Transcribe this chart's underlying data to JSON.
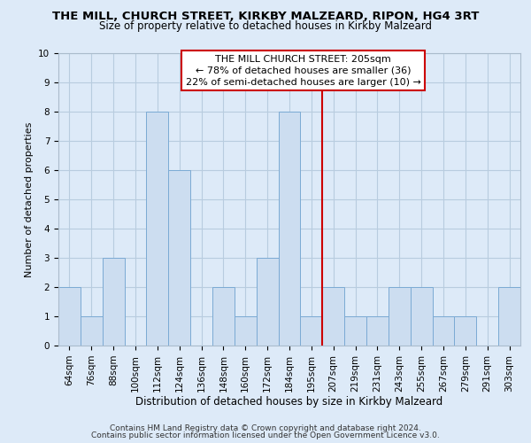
{
  "title": "THE MILL, CHURCH STREET, KIRKBY MALZEARD, RIPON, HG4 3RT",
  "subtitle": "Size of property relative to detached houses in Kirkby Malzeard",
  "xlabel": "Distribution of detached houses by size in Kirkby Malzeard",
  "ylabel": "Number of detached properties",
  "bin_labels": [
    "64sqm",
    "76sqm",
    "88sqm",
    "100sqm",
    "112sqm",
    "124sqm",
    "136sqm",
    "148sqm",
    "160sqm",
    "172sqm",
    "184sqm",
    "195sqm",
    "207sqm",
    "219sqm",
    "231sqm",
    "243sqm",
    "255sqm",
    "267sqm",
    "279sqm",
    "291sqm",
    "303sqm"
  ],
  "bar_heights": [
    2,
    1,
    3,
    0,
    8,
    6,
    0,
    2,
    1,
    3,
    8,
    1,
    2,
    1,
    1,
    2,
    2,
    1,
    1,
    0,
    2
  ],
  "bar_color": "#ccddf0",
  "bar_edge_color": "#7baad4",
  "grid_color": "#b8ccdf",
  "background_color": "#ddeaf8",
  "vline_color": "#cc0000",
  "annotation_title": "THE MILL CHURCH STREET: 205sqm",
  "annotation_line1": "← 78% of detached houses are smaller (36)",
  "annotation_line2": "22% of semi-detached houses are larger (10) →",
  "annotation_box_facecolor": "#ffffff",
  "annotation_box_edgecolor": "#cc0000",
  "footer1": "Contains HM Land Registry data © Crown copyright and database right 2024.",
  "footer2": "Contains public sector information licensed under the Open Government Licence v3.0.",
  "ylim": [
    0,
    10
  ],
  "title_fontsize": 9.5,
  "subtitle_fontsize": 8.5,
  "xlabel_fontsize": 8.5,
  "ylabel_fontsize": 8.0,
  "tick_fontsize": 7.5,
  "annot_fontsize": 8.0,
  "footer_fontsize": 6.5
}
